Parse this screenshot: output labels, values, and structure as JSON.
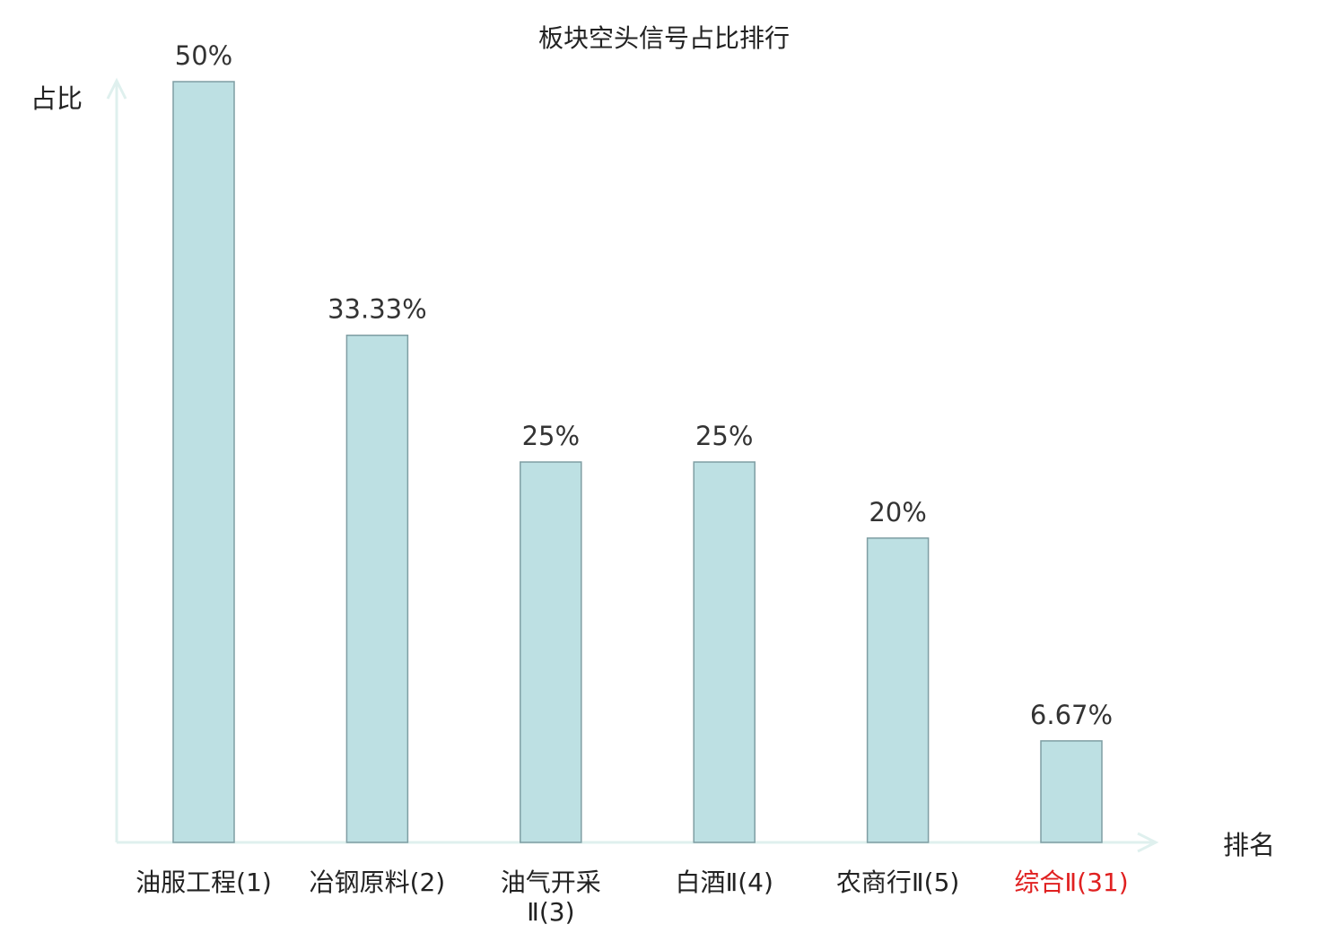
{
  "chart_data": {
    "type": "bar",
    "title": "板块空头信号占比排行",
    "xlabel": "排名",
    "ylabel": "占比",
    "ylim": [
      0,
      50
    ],
    "grid": false,
    "categories": [
      [
        "油服工程(1)"
      ],
      [
        "冶钢原料(2)"
      ],
      [
        "油气开采",
        "Ⅱ(3)"
      ],
      [
        "白酒Ⅱ(4)"
      ],
      [
        "农商行Ⅱ(5)"
      ],
      [
        "综合Ⅱ(31)"
      ]
    ],
    "values": [
      50,
      33.33,
      25,
      25,
      20,
      6.67
    ],
    "value_labels": [
      "50%",
      "33.33%",
      "25%",
      "25%",
      "20%",
      "6.67%"
    ],
    "highlight_index": 5
  },
  "colors": {
    "bar_fill": "#bde0e3",
    "bar_stroke": "#7f9ea3",
    "axis": "#dff0ee",
    "text": "#222222",
    "value_text": "#333333",
    "highlight_text": "#e02020"
  }
}
